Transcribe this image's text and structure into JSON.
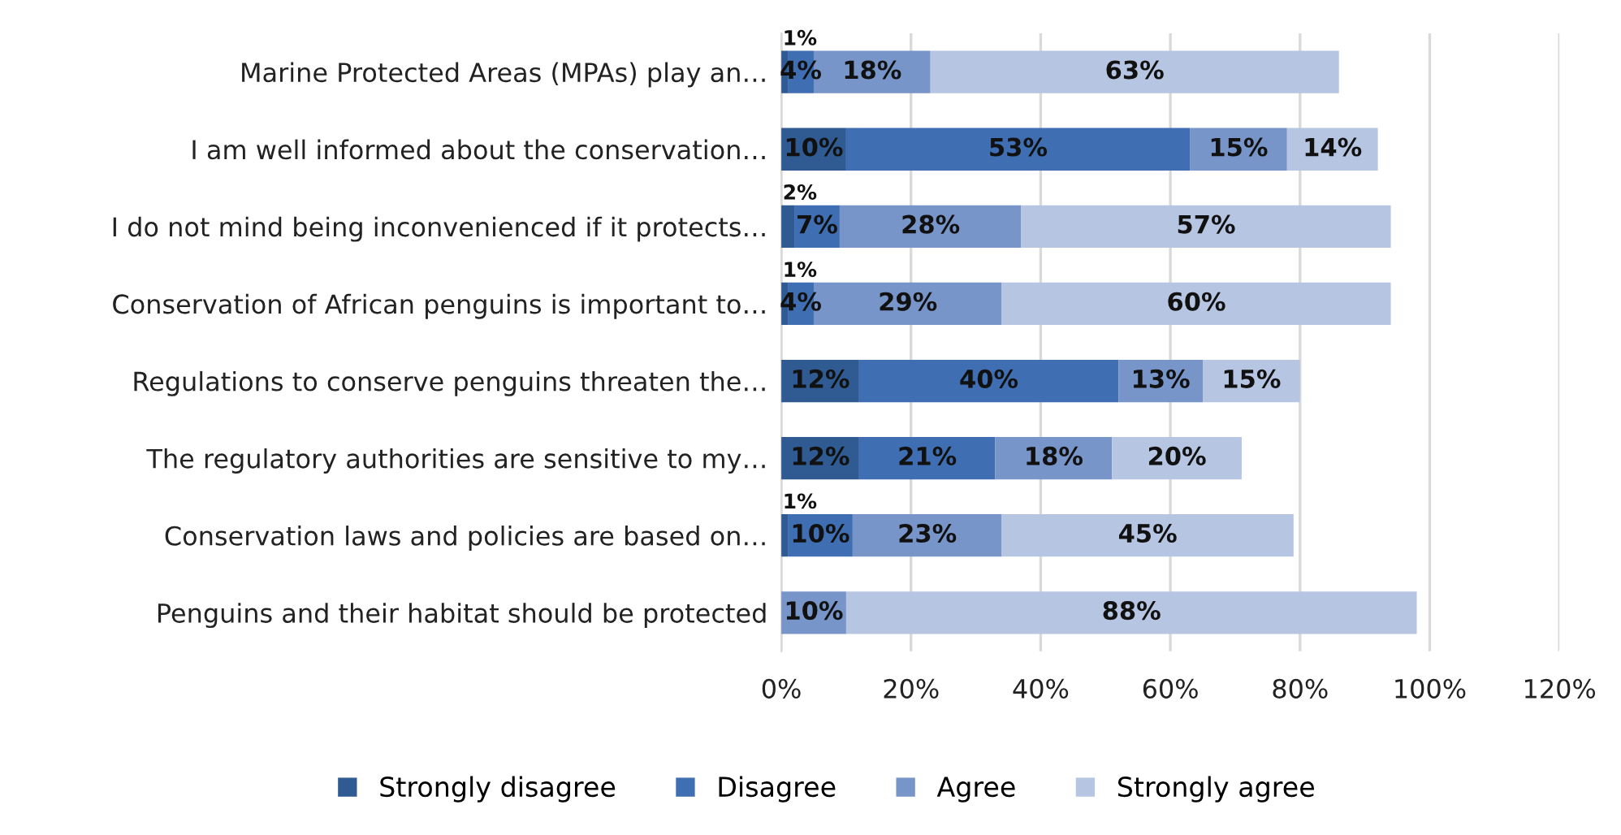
{
  "chart_data": {
    "type": "bar",
    "orientation": "horizontal",
    "stacked": true,
    "categories": [
      "Marine Protected Areas (MPAs) play an…",
      "I am well informed about the conservation…",
      "I do not mind being inconvenienced if it protects…",
      "Conservation of African penguins is important to…",
      "Regulations to conserve penguins threaten the…",
      "The regulatory authorities are sensitive to my…",
      "Conservation laws and policies are based on…",
      "Penguins and their habitat should be protected"
    ],
    "series": [
      {
        "name": "Strongly disagree",
        "color": "#2f5b92",
        "values": [
          1,
          10,
          2,
          1,
          12,
          12,
          1,
          null
        ],
        "value_labels": [
          "1%",
          "10%",
          "2%",
          "1%",
          "12%",
          "12%",
          "1%",
          null
        ]
      },
      {
        "name": "Disagree",
        "color": "#3f6fb2",
        "values": [
          4,
          53,
          7,
          4,
          40,
          21,
          10,
          null
        ],
        "value_labels": [
          "4%",
          "53%",
          "7%",
          "4%",
          "40%",
          "21%",
          "10%",
          null
        ]
      },
      {
        "name": "Agree",
        "color": "#7895c9",
        "values": [
          18,
          15,
          28,
          29,
          13,
          18,
          23,
          10
        ],
        "value_labels": [
          "18%",
          "15%",
          "28%",
          "29%",
          "13%",
          "18%",
          "23%",
          "10%"
        ]
      },
      {
        "name": "Strongly agree",
        "color": "#b6c5e1",
        "values": [
          63,
          14,
          57,
          60,
          15,
          20,
          45,
          88
        ],
        "value_labels": [
          "63%",
          "14%",
          "57%",
          "60%",
          "15%",
          "20%",
          "45%",
          "88%"
        ]
      }
    ],
    "xlim": [
      0,
      120
    ],
    "xticks": [
      {
        "value": 0,
        "label": "0%"
      },
      {
        "value": 20,
        "label": "20%"
      },
      {
        "value": 40,
        "label": "40%"
      },
      {
        "value": 60,
        "label": "60%"
      },
      {
        "value": 80,
        "label": "80%"
      },
      {
        "value": 100,
        "label": "100%"
      },
      {
        "value": 120,
        "label": "120%"
      }
    ],
    "grid": "x",
    "legend": "bottom"
  }
}
